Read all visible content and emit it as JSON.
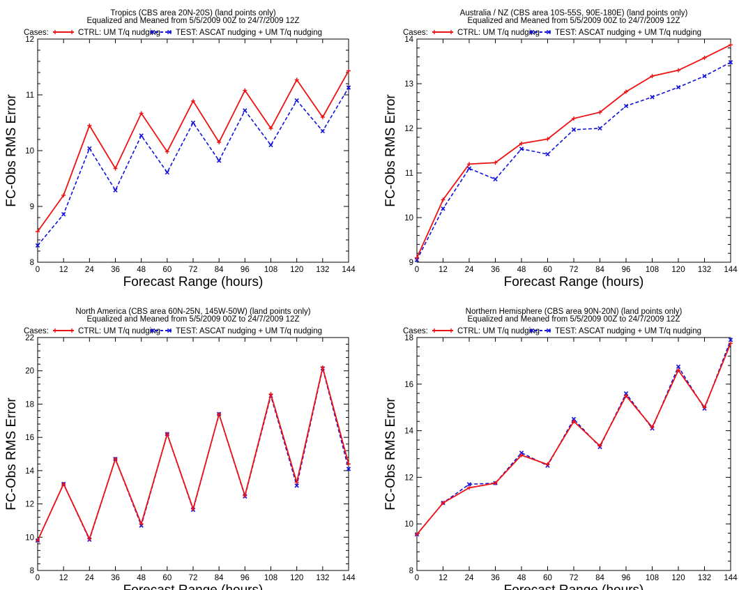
{
  "legend": {
    "prefix": "Cases:",
    "ctrl_label": "CTRL: UM T/q nudging",
    "test_label": "TEST: ASCAT nudging + UM T/q nudging",
    "ctrl_color": "#ee1111",
    "test_color": "#1111dd"
  },
  "chart_data": [
    {
      "type": "line",
      "title": "Tropics (CBS area 20N-20S) (land points only)",
      "subtitle": "Equalized and Meaned from 5/5/2009 00Z to 24/7/2009 12Z",
      "xlabel": "Forecast Range (hours)",
      "ylabel": "FC-Obs RMS Error",
      "x": [
        0,
        12,
        24,
        36,
        48,
        60,
        72,
        84,
        96,
        108,
        120,
        132,
        144
      ],
      "xlim": [
        0,
        144
      ],
      "ylim": [
        8,
        12
      ],
      "yticks": [
        8,
        9,
        10,
        11,
        12
      ],
      "series": [
        {
          "name": "CTRL: UM T/q nudging",
          "values": [
            8.55,
            9.2,
            10.45,
            9.68,
            10.67,
            9.98,
            10.89,
            10.15,
            11.08,
            10.4,
            11.27,
            10.6,
            11.43
          ]
        },
        {
          "name": "TEST: ASCAT nudging + UM T/q nudging",
          "values": [
            8.3,
            8.86,
            10.04,
            9.29,
            10.27,
            9.61,
            10.5,
            9.82,
            10.72,
            10.1,
            10.9,
            10.35,
            11.13
          ]
        }
      ]
    },
    {
      "type": "line",
      "title": "Australia / NZ (CBS area 10S-55S, 90E-180E) (land points only)",
      "subtitle": "Equalized and Meaned from 5/5/2009 00Z to 24/7/2009 12Z",
      "xlabel": "Forecast Range (hours)",
      "ylabel": "FC-Obs RMS Error",
      "x": [
        0,
        12,
        24,
        36,
        48,
        60,
        72,
        84,
        96,
        108,
        120,
        132,
        144
      ],
      "xlim": [
        0,
        144
      ],
      "ylim": [
        9,
        14
      ],
      "yticks": [
        9,
        10,
        11,
        12,
        13,
        14
      ],
      "series": [
        {
          "name": "CTRL: UM T/q nudging",
          "values": [
            9.1,
            10.4,
            11.2,
            11.23,
            11.66,
            11.76,
            12.22,
            12.36,
            12.82,
            13.17,
            13.3,
            13.58,
            13.87
          ]
        },
        {
          "name": "TEST: ASCAT nudging + UM T/q nudging",
          "values": [
            9.05,
            10.2,
            11.1,
            10.86,
            11.54,
            11.42,
            11.97,
            12.0,
            12.5,
            12.7,
            12.92,
            13.17,
            13.48
          ]
        }
      ]
    },
    {
      "type": "line",
      "title": "North America (CBS area 60N-25N, 145W-50W) (land points only)",
      "subtitle": "Equalized and Meaned from 5/5/2009 00Z to 24/7/2009 12Z",
      "xlabel": "Forecast Range (hours)",
      "ylabel": "FC-Obs RMS Error",
      "x": [
        0,
        12,
        24,
        36,
        48,
        60,
        72,
        84,
        96,
        108,
        120,
        132,
        144
      ],
      "xlim": [
        0,
        144
      ],
      "ylim": [
        8,
        22
      ],
      "yticks": [
        8,
        10,
        12,
        14,
        16,
        18,
        20,
        22
      ],
      "series": [
        {
          "name": "CTRL: UM T/q nudging",
          "values": [
            9.8,
            13.2,
            9.9,
            14.7,
            10.8,
            16.2,
            11.7,
            17.4,
            12.5,
            18.6,
            13.3,
            20.2,
            14.4
          ]
        },
        {
          "name": "TEST: ASCAT nudging + UM T/q nudging",
          "values": [
            9.8,
            13.2,
            9.85,
            14.7,
            10.7,
            16.2,
            11.65,
            17.4,
            12.45,
            18.5,
            13.1,
            20.15,
            14.1
          ]
        }
      ]
    },
    {
      "type": "line",
      "title": "Northern Hemisphere (CBS area 90N-20N) (land points only)",
      "subtitle": "Equalized and Meaned from 5/5/2009 00Z to 24/7/2009 12Z",
      "xlabel": "Forecast Range (hours)",
      "ylabel": "FC-Obs RMS Error",
      "x": [
        0,
        12,
        24,
        36,
        48,
        60,
        72,
        84,
        96,
        108,
        120,
        132,
        144
      ],
      "xlim": [
        0,
        144
      ],
      "ylim": [
        8,
        18
      ],
      "yticks": [
        8,
        10,
        12,
        14,
        16,
        18
      ],
      "series": [
        {
          "name": "CTRL: UM T/q nudging",
          "values": [
            9.55,
            10.9,
            11.55,
            11.75,
            12.95,
            12.55,
            14.4,
            13.35,
            15.5,
            14.15,
            16.6,
            15.0,
            17.75
          ]
        },
        {
          "name": "TEST: ASCAT nudging + UM T/q nudging",
          "values": [
            9.55,
            10.9,
            11.7,
            11.75,
            13.05,
            12.5,
            14.5,
            13.3,
            15.6,
            14.1,
            16.75,
            14.95,
            17.9
          ]
        }
      ]
    }
  ]
}
